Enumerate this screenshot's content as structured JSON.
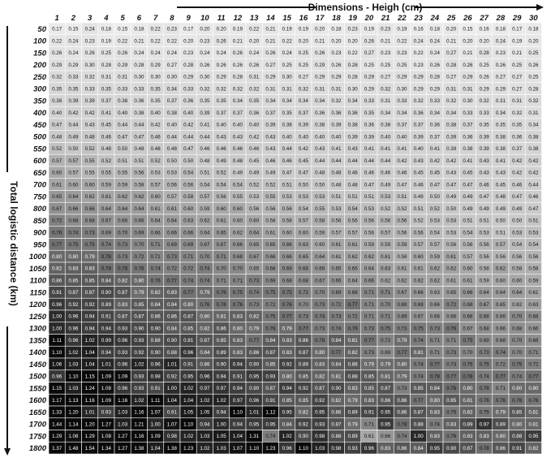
{
  "chart_data": {
    "type": "heatmap",
    "title": "",
    "xlabel": "Dimensions - Heigh (cm)",
    "ylabel": "Total logistic distance (km)",
    "x": [
      1,
      2,
      3,
      4,
      5,
      6,
      7,
      8,
      9,
      10,
      11,
      12,
      13,
      14,
      15,
      16,
      17,
      18,
      19,
      20,
      21,
      22,
      23,
      24,
      25,
      26,
      27,
      28,
      29,
      30
    ],
    "y": [
      50,
      100,
      150,
      200,
      250,
      300,
      350,
      400,
      450,
      500,
      550,
      600,
      650,
      700,
      750,
      800,
      850,
      900,
      950,
      1000,
      1050,
      1100,
      1150,
      1200,
      1250,
      1300,
      1350,
      1400,
      1450,
      1500,
      1550,
      1600,
      1650,
      1700,
      1750,
      1800
    ],
    "values": [
      [
        0.17,
        0.15,
        0.24,
        0.18,
        0.15,
        0.18,
        0.22,
        0.23,
        0.17,
        0.2,
        0.2,
        0.19,
        0.22,
        0.21,
        0.19,
        0.19,
        0.2,
        0.18,
        0.23,
        0.19,
        0.23,
        0.19,
        0.16,
        0.18,
        0.2,
        0.15,
        0.16,
        0.18,
        0.17,
        0.18
      ],
      [
        0.22,
        0.24,
        0.23,
        0.19,
        0.22,
        0.21,
        0.22,
        0.22,
        0.2,
        0.23,
        0.26,
        0.21,
        0.2,
        0.21,
        0.22,
        0.2,
        0.21,
        0.2,
        0.2,
        0.26,
        0.21,
        0.22,
        0.24,
        0.24,
        0.21,
        0.2,
        0.2,
        0.24,
        0.19,
        0.2
      ],
      [
        0.26,
        0.24,
        0.26,
        0.25,
        0.26,
        0.24,
        0.24,
        0.24,
        0.23,
        0.24,
        0.24,
        0.26,
        0.24,
        0.26,
        0.24,
        0.25,
        0.26,
        0.23,
        0.22,
        0.27,
        0.23,
        0.23,
        0.22,
        0.24,
        0.27,
        0.21,
        0.28,
        0.23,
        0.21,
        0.25
      ],
      [
        0.29,
        0.29,
        0.3,
        0.28,
        0.29,
        0.28,
        0.29,
        0.27,
        0.28,
        0.26,
        0.26,
        0.26,
        0.26,
        0.27,
        0.25,
        0.25,
        0.29,
        0.26,
        0.28,
        0.25,
        0.25,
        0.25,
        0.23,
        0.26,
        0.28,
        0.26,
        0.25,
        0.26,
        0.25,
        0.26
      ],
      [
        0.32,
        0.33,
        0.32,
        0.31,
        0.31,
        0.3,
        0.3,
        0.3,
        0.29,
        0.3,
        0.29,
        0.28,
        0.31,
        0.29,
        0.3,
        0.27,
        0.29,
        0.29,
        0.28,
        0.29,
        0.27,
        0.29,
        0.29,
        0.28,
        0.27,
        0.29,
        0.26,
        0.27,
        0.27,
        0.25
      ],
      [
        0.35,
        0.35,
        0.33,
        0.35,
        0.33,
        0.33,
        0.35,
        0.34,
        0.33,
        0.32,
        0.32,
        0.32,
        0.32,
        0.31,
        0.31,
        0.32,
        0.31,
        0.31,
        0.3,
        0.29,
        0.32,
        0.3,
        0.29,
        0.29,
        0.31,
        0.31,
        0.29,
        0.29,
        0.27,
        0.28
      ],
      [
        0.38,
        0.39,
        0.39,
        0.37,
        0.38,
        0.36,
        0.35,
        0.37,
        0.36,
        0.35,
        0.35,
        0.34,
        0.35,
        0.34,
        0.34,
        0.34,
        0.34,
        0.32,
        0.34,
        0.33,
        0.31,
        0.33,
        0.32,
        0.33,
        0.32,
        0.3,
        0.32,
        0.31,
        0.31,
        0.32
      ],
      [
        0.4,
        0.42,
        0.42,
        0.41,
        0.4,
        0.38,
        0.4,
        0.38,
        0.4,
        0.39,
        0.37,
        0.37,
        0.36,
        0.37,
        0.35,
        0.37,
        0.36,
        0.36,
        0.36,
        0.35,
        0.34,
        0.34,
        0.36,
        0.34,
        0.34,
        0.33,
        0.33,
        0.34,
        0.32,
        0.31
      ],
      [
        0.47,
        0.44,
        0.43,
        0.45,
        0.44,
        0.44,
        0.42,
        0.4,
        0.42,
        0.41,
        0.4,
        0.4,
        0.4,
        0.39,
        0.38,
        0.39,
        0.38,
        0.39,
        0.38,
        0.36,
        0.38,
        0.37,
        0.37,
        0.36,
        0.38,
        0.37,
        0.35,
        0.35,
        0.35,
        0.34
      ],
      [
        0.48,
        0.49,
        0.48,
        0.46,
        0.47,
        0.47,
        0.46,
        0.44,
        0.44,
        0.44,
        0.43,
        0.43,
        0.42,
        0.43,
        0.4,
        0.4,
        0.4,
        0.4,
        0.39,
        0.39,
        0.4,
        0.4,
        0.39,
        0.37,
        0.39,
        0.36,
        0.39,
        0.38,
        0.36,
        0.38
      ],
      [
        0.52,
        0.5,
        0.52,
        0.48,
        0.5,
        0.48,
        0.48,
        0.48,
        0.47,
        0.46,
        0.46,
        0.46,
        0.46,
        0.43,
        0.44,
        0.42,
        0.43,
        0.41,
        0.43,
        0.41,
        0.41,
        0.41,
        0.4,
        0.41,
        0.39,
        0.38,
        0.39,
        0.38,
        0.37,
        0.38
      ],
      [
        0.57,
        0.57,
        0.55,
        0.52,
        0.51,
        0.51,
        0.52,
        0.5,
        0.5,
        0.48,
        0.49,
        0.48,
        0.45,
        0.46,
        0.46,
        0.45,
        0.44,
        0.44,
        0.44,
        0.44,
        0.44,
        0.42,
        0.43,
        0.42,
        0.42,
        0.41,
        0.43,
        0.41,
        0.42,
        0.42
      ],
      [
        0.6,
        0.57,
        0.55,
        0.55,
        0.55,
        0.56,
        0.53,
        0.53,
        0.54,
        0.51,
        0.52,
        0.49,
        0.49,
        0.49,
        0.47,
        0.47,
        0.48,
        0.48,
        0.46,
        0.46,
        0.46,
        0.46,
        0.45,
        0.45,
        0.43,
        0.45,
        0.43,
        0.43,
        0.42,
        0.42
      ],
      [
        0.61,
        0.6,
        0.6,
        0.59,
        0.59,
        0.58,
        0.57,
        0.56,
        0.56,
        0.54,
        0.54,
        0.54,
        0.52,
        0.52,
        0.51,
        0.5,
        0.5,
        0.48,
        0.48,
        0.47,
        0.49,
        0.47,
        0.46,
        0.47,
        0.47,
        0.47,
        0.46,
        0.45,
        0.46,
        0.44
      ],
      [
        0.65,
        0.64,
        0.62,
        0.61,
        0.62,
        0.62,
        0.6,
        0.57,
        0.58,
        0.57,
        0.56,
        0.55,
        0.53,
        0.55,
        0.53,
        0.53,
        0.53,
        0.51,
        0.51,
        0.51,
        0.53,
        0.51,
        0.49,
        0.5,
        0.49,
        0.49,
        0.47,
        0.48,
        0.47,
        0.46
      ],
      [
        0.67,
        0.66,
        0.66,
        0.64,
        0.64,
        0.64,
        0.61,
        0.61,
        0.6,
        0.59,
        0.6,
        0.6,
        0.56,
        0.56,
        0.56,
        0.54,
        0.55,
        0.53,
        0.54,
        0.53,
        0.52,
        0.52,
        0.51,
        0.52,
        0.5,
        0.49,
        0.49,
        0.49,
        0.49,
        0.47
      ],
      [
        0.72,
        0.68,
        0.68,
        0.67,
        0.66,
        0.66,
        0.64,
        0.64,
        0.63,
        0.62,
        0.61,
        0.6,
        0.6,
        0.58,
        0.58,
        0.57,
        0.58,
        0.56,
        0.56,
        0.56,
        0.56,
        0.56,
        0.52,
        0.53,
        0.53,
        0.51,
        0.51,
        0.5,
        0.5,
        0.51
      ],
      [
        0.76,
        0.74,
        0.73,
        0.69,
        0.7,
        0.69,
        0.66,
        0.66,
        0.66,
        0.64,
        0.65,
        0.62,
        0.64,
        0.61,
        0.6,
        0.6,
        0.59,
        0.57,
        0.57,
        0.56,
        0.57,
        0.56,
        0.56,
        0.54,
        0.53,
        0.54,
        0.53,
        0.51,
        0.53,
        0.53
      ],
      [
        0.77,
        0.75,
        0.75,
        0.74,
        0.73,
        0.7,
        0.71,
        0.69,
        0.69,
        0.67,
        0.67,
        0.66,
        0.65,
        0.65,
        0.66,
        0.63,
        0.6,
        0.61,
        0.61,
        0.59,
        0.59,
        0.59,
        0.57,
        0.57,
        0.56,
        0.56,
        0.56,
        0.57,
        0.54,
        0.54
      ],
      [
        0.8,
        0.8,
        0.79,
        0.78,
        0.73,
        0.72,
        0.71,
        0.73,
        0.71,
        0.7,
        0.71,
        0.68,
        0.67,
        0.66,
        0.66,
        0.65,
        0.64,
        0.61,
        0.62,
        0.62,
        0.61,
        0.58,
        0.6,
        0.59,
        0.61,
        0.57,
        0.56,
        0.56,
        0.56,
        0.56
      ],
      [
        0.82,
        0.83,
        0.83,
        0.78,
        0.78,
        0.76,
        0.74,
        0.72,
        0.72,
        0.74,
        0.7,
        0.7,
        0.65,
        0.68,
        0.69,
        0.68,
        0.66,
        0.65,
        0.65,
        0.64,
        0.63,
        0.61,
        0.61,
        0.62,
        0.62,
        0.6,
        0.58,
        0.62,
        0.58,
        0.58
      ],
      [
        0.86,
        0.85,
        0.85,
        0.84,
        0.82,
        0.8,
        0.76,
        0.77,
        0.74,
        0.74,
        0.71,
        0.71,
        0.73,
        0.69,
        0.68,
        0.68,
        0.67,
        0.66,
        0.64,
        0.66,
        0.62,
        0.62,
        0.62,
        0.62,
        0.61,
        0.61,
        0.59,
        0.6,
        0.6,
        0.59
      ],
      [
        0.91,
        0.87,
        0.87,
        0.9,
        0.87,
        0.79,
        0.82,
        0.83,
        0.77,
        0.79,
        0.76,
        0.75,
        0.74,
        0.75,
        0.75,
        0.72,
        0.7,
        0.69,
        0.68,
        0.71,
        0.71,
        0.67,
        0.66,
        0.63,
        0.65,
        0.66,
        0.64,
        0.64,
        0.64,
        0.61
      ],
      [
        0.96,
        0.92,
        0.92,
        0.89,
        0.83,
        0.85,
        0.84,
        0.84,
        0.8,
        0.76,
        0.76,
        0.76,
        0.73,
        0.72,
        0.76,
        0.7,
        0.73,
        0.72,
        0.77,
        0.71,
        0.7,
        0.69,
        0.69,
        0.66,
        0.72,
        0.68,
        0.67,
        0.65,
        0.62,
        0.63
      ],
      [
        1.0,
        0.96,
        0.94,
        0.91,
        0.87,
        0.87,
        0.86,
        0.86,
        0.87,
        0.8,
        0.81,
        0.83,
        0.82,
        0.75,
        0.77,
        0.73,
        0.74,
        0.73,
        0.72,
        0.71,
        0.71,
        0.69,
        0.67,
        0.66,
        0.66,
        0.68,
        0.68,
        0.66,
        0.7,
        0.68
      ],
      [
        1.0,
        0.96,
        0.94,
        0.94,
        0.93,
        0.9,
        0.9,
        0.84,
        0.85,
        0.82,
        0.86,
        0.8,
        0.79,
        0.76,
        0.79,
        0.77,
        0.73,
        0.74,
        0.76,
        0.73,
        0.75,
        0.73,
        0.75,
        0.73,
        0.76,
        0.67,
        0.68,
        0.66,
        0.68,
        0.66
      ],
      [
        1.11,
        0.96,
        1.02,
        0.99,
        0.96,
        0.93,
        0.88,
        0.9,
        0.91,
        0.87,
        0.85,
        0.83,
        0.77,
        0.84,
        0.83,
        0.86,
        0.76,
        0.84,
        0.81,
        0.77,
        0.72,
        0.79,
        0.74,
        0.71,
        0.71,
        0.75,
        0.69,
        0.68,
        0.7,
        0.68
      ],
      [
        1.1,
        1.02,
        1.04,
        0.94,
        0.93,
        0.92,
        0.9,
        0.88,
        0.96,
        0.84,
        0.89,
        0.83,
        0.86,
        0.87,
        0.83,
        0.87,
        0.8,
        0.77,
        0.82,
        0.73,
        0.69,
        0.77,
        0.81,
        0.71,
        0.73,
        0.7,
        0.73,
        0.74,
        0.7,
        0.71
      ],
      [
        1.06,
        1.03,
        1.04,
        1.01,
        0.96,
        1.02,
        0.96,
        1.01,
        0.91,
        0.86,
        0.9,
        0.94,
        0.9,
        0.85,
        0.92,
        0.89,
        0.83,
        0.84,
        0.86,
        0.79,
        0.79,
        0.8,
        0.74,
        0.77,
        0.73,
        0.75,
        0.75,
        0.72,
        0.75,
        0.72
      ],
      [
        0.96,
        1.1,
        1.15,
        1.09,
        1.09,
        0.93,
        0.98,
        0.92,
        0.95,
        0.96,
        0.94,
        0.91,
        0.95,
        0.93,
        0.8,
        0.85,
        0.82,
        0.81,
        0.88,
        0.85,
        0.81,
        0.79,
        0.74,
        0.78,
        0.77,
        0.78,
        0.74,
        0.77,
        0.74,
        0.77
      ],
      [
        1.15,
        1.03,
        1.24,
        1.08,
        0.96,
        0.93,
        0.91,
        1.0,
        1.02,
        0.97,
        0.97,
        0.94,
        0.9,
        0.87,
        0.94,
        0.92,
        0.87,
        0.9,
        0.83,
        0.85,
        0.87,
        0.73,
        0.85,
        0.84,
        0.78,
        0.8,
        0.76,
        0.71,
        0.8,
        0.8
      ],
      [
        1.17,
        1.13,
        1.16,
        1.09,
        1.16,
        1.02,
        1.11,
        1.04,
        1.04,
        1.02,
        1.02,
        0.97,
        0.96,
        0.91,
        0.85,
        0.85,
        0.92,
        0.82,
        0.79,
        0.83,
        0.86,
        0.86,
        0.77,
        0.8,
        0.85,
        0.81,
        0.76,
        0.76,
        0.76,
        0.76
      ],
      [
        1.33,
        1.2,
        1.01,
        0.93,
        1.03,
        1.16,
        1.07,
        0.91,
        1.05,
        1.05,
        0.94,
        1.1,
        1.01,
        1.12,
        0.95,
        0.82,
        0.95,
        0.86,
        0.89,
        0.91,
        0.95,
        0.86,
        0.87,
        0.83,
        0.75,
        0.82,
        0.75,
        0.79,
        0.85,
        0.81
      ],
      [
        1.44,
        1.14,
        1.2,
        1.27,
        1.03,
        1.21,
        1.0,
        1.07,
        1.1,
        0.94,
        1.0,
        0.94,
        0.95,
        0.95,
        0.84,
        0.92,
        0.93,
        0.87,
        0.79,
        0.71,
        0.95,
        0.78,
        0.88,
        0.74,
        0.83,
        0.89,
        0.97,
        0.89,
        0.8,
        0.81
      ],
      [
        1.29,
        1.08,
        1.29,
        1.08,
        1.27,
        1.16,
        1.09,
        0.98,
        1.02,
        1.03,
        1.05,
        1.04,
        1.31,
        0.74,
        1.02,
        0.9,
        0.98,
        0.88,
        0.89,
        0.61,
        0.66,
        0.74,
        1.0,
        0.83,
        0.76,
        0.83,
        0.83,
        0.8,
        0.88,
        0.95
      ],
      [
        1.37,
        1.48,
        1.54,
        1.34,
        1.27,
        1.38,
        1.04,
        1.38,
        1.23,
        1.02,
        1.03,
        1.07,
        1.1,
        1.23,
        0.96,
        1.1,
        1.03,
        0.98,
        0.93,
        0.96,
        0.83,
        0.86,
        0.84,
        0.95,
        0.9,
        0.87,
        0.78,
        0.86,
        0.91,
        0.82
      ]
    ]
  }
}
